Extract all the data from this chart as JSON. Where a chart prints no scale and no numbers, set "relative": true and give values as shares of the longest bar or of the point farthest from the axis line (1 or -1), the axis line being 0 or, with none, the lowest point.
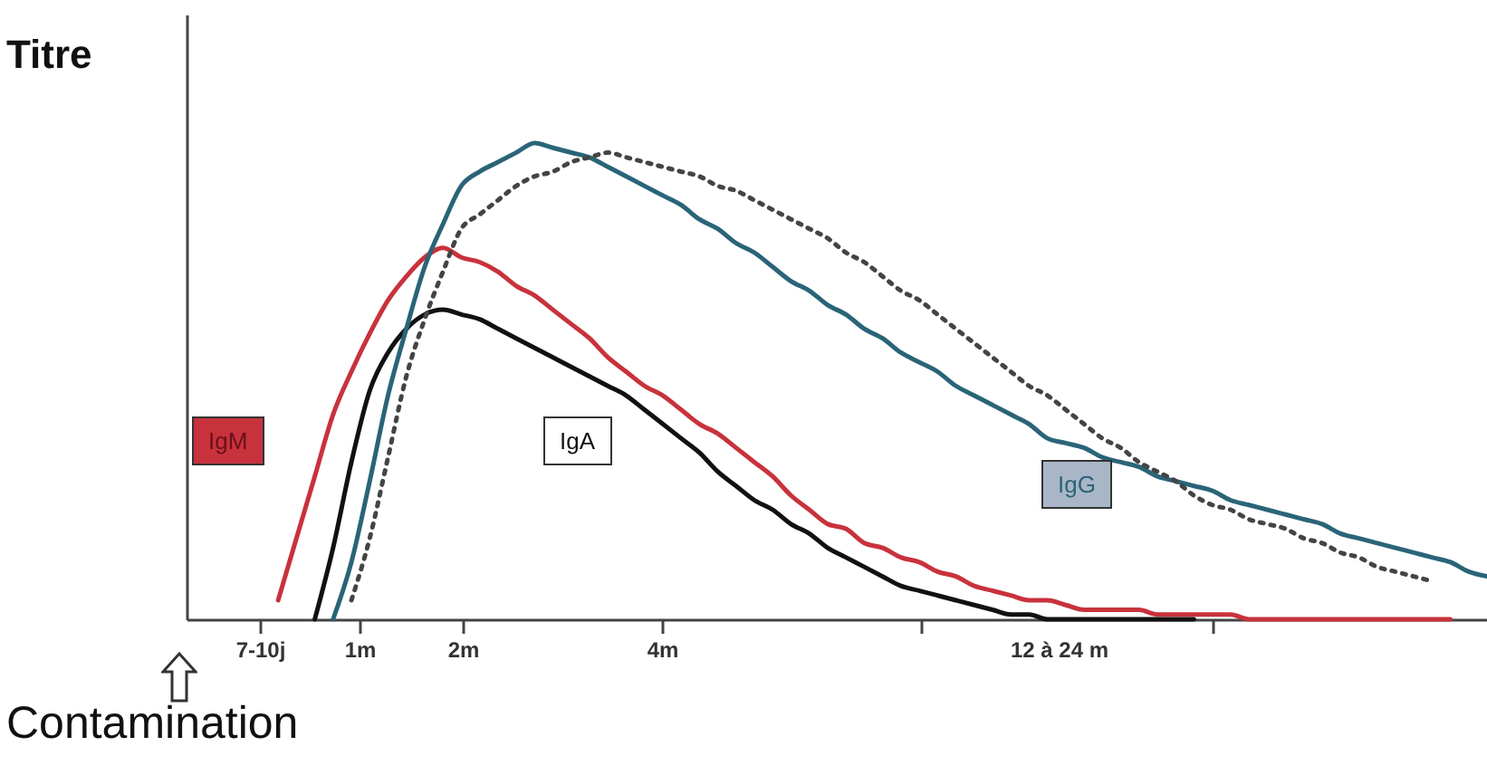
{
  "chart_data": {
    "type": "line",
    "relative": true,
    "xlabel": "Contamination",
    "ylabel": "Titre",
    "categories": [
      null,
      null,
      null,
      null,
      null,
      null,
      null,
      null,
      null,
      null,
      null,
      null,
      null,
      null,
      null,
      null,
      null,
      null,
      null,
      null,
      null,
      null,
      null,
      null,
      null,
      null,
      null,
      null,
      null,
      null,
      null,
      null,
      null,
      null,
      null,
      null,
      null,
      null,
      null,
      null,
      null,
      null,
      null,
      null,
      null,
      null,
      null,
      null,
      null,
      null,
      null,
      null,
      null,
      null,
      null,
      null,
      null,
      null,
      null,
      null,
      null,
      null,
      null,
      null,
      null,
      null,
      null,
      null,
      null,
      null,
      null,
      null
    ],
    "annotations": [
      "7-10j",
      "1m",
      "2m",
      "4m",
      "12 à 24 m"
    ],
    "series": [
      {
        "name": "IgM",
        "color": "#c8323c",
        "values": [
          null,
          null,
          null,
          null,
          null,
          0.04,
          0.17,
          0.3,
          0.43,
          0.52,
          0.6,
          0.67,
          0.72,
          0.76,
          0.78,
          0.76,
          0.75,
          0.73,
          0.7,
          0.68,
          0.65,
          0.62,
          0.59,
          0.55,
          0.52,
          0.49,
          0.47,
          0.44,
          0.41,
          0.39,
          0.36,
          0.33,
          0.3,
          0.26,
          0.23,
          0.2,
          0.19,
          0.16,
          0.15,
          0.13,
          0.12,
          0.1,
          0.09,
          0.07,
          0.06,
          0.05,
          0.04,
          0.04,
          0.03,
          0.02,
          0.02,
          0.02,
          0.02,
          0.01,
          0.01,
          0.01,
          0.01,
          0.01,
          0,
          0,
          0,
          0,
          0,
          0,
          0,
          0,
          0,
          0,
          0,
          0,
          null,
          null
        ]
      },
      {
        "name": "IgA",
        "color": "#111111",
        "values": [
          null,
          null,
          null,
          null,
          null,
          null,
          null,
          0,
          0.15,
          0.33,
          0.48,
          0.56,
          0.61,
          0.64,
          0.65,
          0.64,
          0.63,
          0.61,
          0.59,
          0.57,
          0.55,
          0.53,
          0.51,
          0.49,
          0.47,
          0.44,
          0.41,
          0.38,
          0.35,
          0.31,
          0.28,
          0.25,
          0.23,
          0.2,
          0.18,
          0.15,
          0.13,
          0.11,
          0.09,
          0.07,
          0.06,
          0.05,
          0.04,
          0.03,
          0.02,
          0.01,
          0.01,
          0,
          0,
          0,
          0,
          0,
          0,
          0,
          0,
          0,
          null,
          null,
          null,
          null,
          null,
          null,
          null,
          null,
          null,
          null,
          null,
          null,
          null,
          null,
          null,
          null
        ]
      },
      {
        "name": "IgG",
        "color": "#2a6478",
        "values": [
          null,
          null,
          null,
          null,
          null,
          null,
          null,
          null,
          0,
          0.12,
          0.29,
          0.47,
          0.61,
          0.74,
          0.83,
          0.91,
          0.94,
          0.96,
          0.98,
          1,
          0.99,
          0.98,
          0.97,
          0.95,
          0.93,
          0.91,
          0.89,
          0.87,
          0.84,
          0.82,
          0.79,
          0.77,
          0.74,
          0.71,
          0.69,
          0.66,
          0.64,
          0.61,
          0.59,
          0.56,
          0.54,
          0.52,
          0.49,
          0.47,
          0.45,
          0.43,
          0.41,
          0.38,
          0.37,
          0.36,
          0.34,
          0.33,
          0.32,
          0.3,
          0.29,
          0.28,
          0.27,
          0.25,
          0.24,
          0.23,
          0.22,
          0.21,
          0.2,
          0.18,
          0.17,
          0.16,
          0.15,
          0.14,
          0.13,
          0.12,
          0.1,
          0.09
        ]
      },
      {
        "color": "#444444",
        "line_style": "dotted",
        "values": [
          null,
          null,
          null,
          null,
          null,
          null,
          null,
          null,
          null,
          0.04,
          0.17,
          0.34,
          0.51,
          0.63,
          0.73,
          0.82,
          0.85,
          0.88,
          0.91,
          0.93,
          0.94,
          0.96,
          0.97,
          0.98,
          0.97,
          0.96,
          0.95,
          0.94,
          0.93,
          0.91,
          0.9,
          0.88,
          0.86,
          0.84,
          0.82,
          0.8,
          0.77,
          0.75,
          0.72,
          0.69,
          0.67,
          0.64,
          0.61,
          0.58,
          0.55,
          0.52,
          0.49,
          0.47,
          0.44,
          0.41,
          0.38,
          0.36,
          0.33,
          0.31,
          0.29,
          0.26,
          0.24,
          0.23,
          0.21,
          0.2,
          0.19,
          0.17,
          0.16,
          0.14,
          0.13,
          0.11,
          0.1,
          0.09,
          0.08,
          null,
          null,
          null
        ]
      }
    ]
  }
}
